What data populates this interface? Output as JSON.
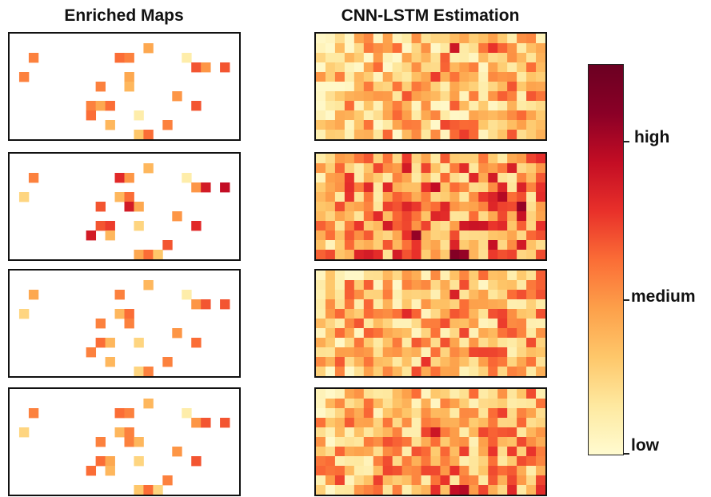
{
  "titles": {
    "left": "Enriched Maps",
    "right": "CNN-LSTM Estimation"
  },
  "colorbar": {
    "colors": [
      "#fffbd0",
      "#fee9a0",
      "#fec76a",
      "#fda04a",
      "#fb6d36",
      "#e8302a",
      "#c30d24",
      "#8a0026",
      "#6b0022"
    ],
    "labels": {
      "high": "high",
      "medium": "medium",
      "low": "low"
    },
    "levels": {
      "high": 0.8,
      "medium": 0.4,
      "low": 0.0
    }
  },
  "grid": {
    "cols": 24,
    "rows": 11
  },
  "enriched_maps": [
    {
      "name": "enriched-map-1",
      "cells": [
        [
          2,
          2,
          0.45
        ],
        [
          11,
          2,
          0.5
        ],
        [
          12,
          2,
          0.45
        ],
        [
          14,
          1,
          0.35
        ],
        [
          18,
          2,
          0.1
        ],
        [
          19,
          3,
          0.55
        ],
        [
          20,
          3,
          0.4
        ],
        [
          22,
          3,
          0.55
        ],
        [
          1,
          4,
          0.45
        ],
        [
          12,
          4,
          0.35
        ],
        [
          9,
          5,
          0.45
        ],
        [
          12,
          5,
          0.3
        ],
        [
          17,
          6,
          0.4
        ],
        [
          8,
          7,
          0.45
        ],
        [
          9,
          7,
          0.35
        ],
        [
          10,
          7,
          0.5
        ],
        [
          19,
          7,
          0.55
        ],
        [
          8,
          8,
          0.5
        ],
        [
          13,
          8,
          0.1
        ],
        [
          10,
          9,
          0.3
        ],
        [
          16,
          9,
          0.45
        ],
        [
          13,
          10,
          0.25
        ],
        [
          14,
          10,
          0.5
        ]
      ]
    },
    {
      "name": "enriched-map-2",
      "cells": [
        [
          2,
          2,
          0.45
        ],
        [
          14,
          1,
          0.3
        ],
        [
          11,
          2,
          0.65
        ],
        [
          12,
          2,
          0.4
        ],
        [
          18,
          2,
          0.1
        ],
        [
          19,
          3,
          0.4
        ],
        [
          20,
          3,
          0.7
        ],
        [
          22,
          3,
          0.75
        ],
        [
          1,
          4,
          0.2
        ],
        [
          11,
          4,
          0.3
        ],
        [
          12,
          4,
          0.5
        ],
        [
          12,
          5,
          0.7
        ],
        [
          13,
          5,
          0.35
        ],
        [
          9,
          5,
          0.55
        ],
        [
          17,
          6,
          0.4
        ],
        [
          9,
          7,
          0.55
        ],
        [
          10,
          7,
          0.6
        ],
        [
          13,
          7,
          0.2
        ],
        [
          19,
          7,
          0.65
        ],
        [
          8,
          8,
          0.7
        ],
        [
          10,
          8,
          0.3
        ],
        [
          16,
          9,
          0.55
        ],
        [
          13,
          10,
          0.35
        ],
        [
          14,
          10,
          0.5
        ],
        [
          15,
          10,
          0.25
        ]
      ]
    },
    {
      "name": "enriched-map-3",
      "cells": [
        [
          2,
          2,
          0.35
        ],
        [
          14,
          1,
          0.3
        ],
        [
          11,
          2,
          0.45
        ],
        [
          18,
          2,
          0.1
        ],
        [
          19,
          3,
          0.4
        ],
        [
          20,
          3,
          0.55
        ],
        [
          22,
          3,
          0.55
        ],
        [
          1,
          4,
          0.2
        ],
        [
          11,
          4,
          0.3
        ],
        [
          12,
          4,
          0.5
        ],
        [
          12,
          5,
          0.45
        ],
        [
          9,
          5,
          0.45
        ],
        [
          17,
          6,
          0.4
        ],
        [
          9,
          7,
          0.5
        ],
        [
          10,
          7,
          0.3
        ],
        [
          13,
          7,
          0.2
        ],
        [
          19,
          7,
          0.5
        ],
        [
          8,
          8,
          0.45
        ],
        [
          10,
          9,
          0.3
        ],
        [
          16,
          9,
          0.45
        ],
        [
          13,
          10,
          0.2
        ],
        [
          14,
          10,
          0.45
        ]
      ]
    },
    {
      "name": "enriched-map-4",
      "cells": [
        [
          2,
          2,
          0.45
        ],
        [
          14,
          1,
          0.3
        ],
        [
          11,
          2,
          0.5
        ],
        [
          12,
          2,
          0.45
        ],
        [
          18,
          2,
          0.1
        ],
        [
          19,
          3,
          0.4
        ],
        [
          20,
          3,
          0.55
        ],
        [
          22,
          3,
          0.55
        ],
        [
          1,
          4,
          0.2
        ],
        [
          11,
          4,
          0.3
        ],
        [
          12,
          4,
          0.45
        ],
        [
          12,
          5,
          0.45
        ],
        [
          13,
          5,
          0.3
        ],
        [
          9,
          5,
          0.45
        ],
        [
          17,
          6,
          0.4
        ],
        [
          9,
          7,
          0.5
        ],
        [
          10,
          7,
          0.35
        ],
        [
          13,
          7,
          0.2
        ],
        [
          19,
          7,
          0.55
        ],
        [
          8,
          8,
          0.5
        ],
        [
          10,
          8,
          0.3
        ],
        [
          16,
          9,
          0.45
        ],
        [
          13,
          10,
          0.25
        ],
        [
          14,
          10,
          0.5
        ],
        [
          15,
          10,
          0.2
        ]
      ]
    }
  ],
  "cnn_lstm_estimations": [
    {
      "name": "cnn-lstm-estimation-1",
      "seed": 11,
      "base": 0.24,
      "spread": 0.26,
      "bottom_boost": 0.0,
      "hot": [
        [
          14,
          1,
          0.72
        ],
        [
          18,
          1,
          0.62
        ],
        [
          12,
          4,
          0.6
        ],
        [
          13,
          9,
          0.58
        ],
        [
          9,
          6,
          0.55
        ],
        [
          20,
          5,
          0.55
        ],
        [
          15,
          10,
          0.6
        ]
      ]
    },
    {
      "name": "cnn-lstm-estimation-2",
      "seed": 23,
      "base": 0.34,
      "spread": 0.3,
      "bottom_boost": 0.08,
      "hot": [
        [
          12,
          3,
          0.75
        ],
        [
          19,
          4,
          0.78
        ],
        [
          21,
          5,
          0.85
        ],
        [
          17,
          7,
          0.72
        ],
        [
          7,
          7,
          0.7
        ],
        [
          10,
          8,
          0.85
        ],
        [
          14,
          10,
          0.9
        ],
        [
          15,
          10,
          0.85
        ],
        [
          9,
          1,
          0.7
        ],
        [
          6,
          6,
          0.65
        ]
      ]
    },
    {
      "name": "cnn-lstm-estimation-3",
      "seed": 37,
      "base": 0.26,
      "spread": 0.27,
      "bottom_boost": 0.03,
      "hot": [
        [
          14,
          2,
          0.68
        ],
        [
          9,
          4,
          0.65
        ],
        [
          19,
          5,
          0.6
        ],
        [
          4,
          5,
          0.55
        ],
        [
          16,
          8,
          0.58
        ],
        [
          11,
          9,
          0.62
        ]
      ]
    },
    {
      "name": "cnn-lstm-estimation-4",
      "seed": 53,
      "base": 0.28,
      "spread": 0.28,
      "bottom_boost": 0.05,
      "hot": [
        [
          12,
          4,
          0.72
        ],
        [
          15,
          10,
          0.78
        ],
        [
          14,
          10,
          0.75
        ],
        [
          13,
          9,
          0.62
        ],
        [
          20,
          6,
          0.6
        ],
        [
          17,
          4,
          0.58
        ],
        [
          7,
          8,
          0.58
        ]
      ]
    }
  ]
}
